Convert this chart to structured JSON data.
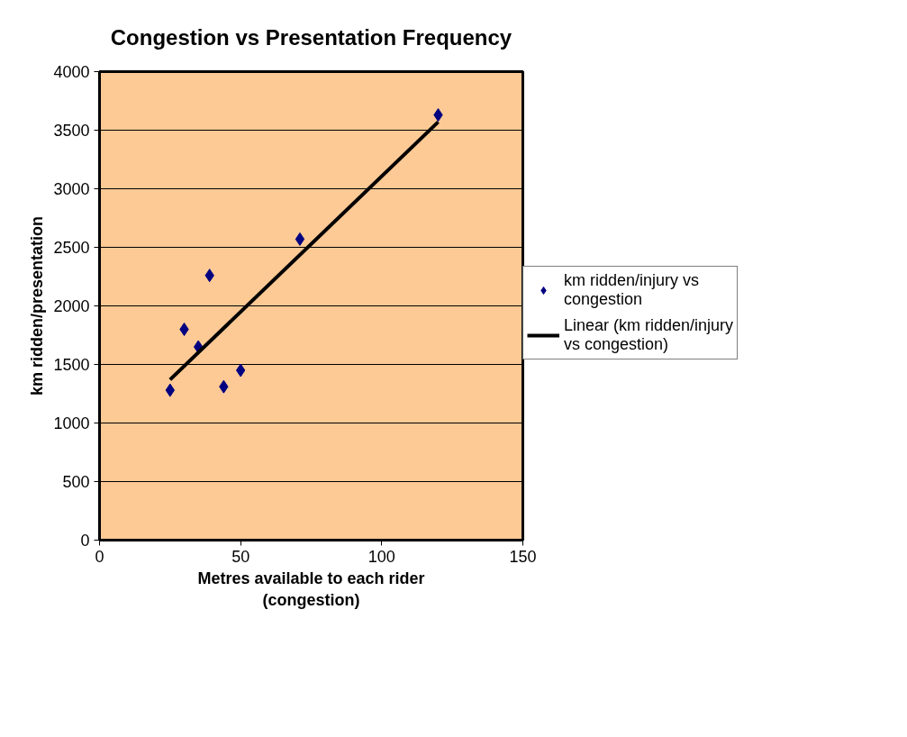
{
  "chart_data": {
    "type": "scatter",
    "title": "Congestion vs Presentation Frequency",
    "xlabel": "Metres available to each rider (congestion)",
    "ylabel": "km ridden/presentation",
    "xlim": [
      0,
      150
    ],
    "xticks": [
      0,
      50,
      100,
      150
    ],
    "ylim": [
      0,
      4000
    ],
    "yticks": [
      0,
      500,
      1000,
      1500,
      2000,
      2500,
      3000,
      3500,
      4000
    ],
    "grid": "y",
    "legend": "right",
    "series": [
      {
        "name": "km ridden/injury vs congestion",
        "color": "#000080",
        "marker": "diamond",
        "x": [
          25,
          30,
          35,
          39,
          44,
          50,
          71,
          120
        ],
        "values": [
          1280,
          1800,
          1650,
          2260,
          1310,
          1450,
          2570,
          3630
        ]
      },
      {
        "name": "Linear (km ridden/injury vs congestion)",
        "type": "line",
        "color": "#000000",
        "line_style": "solid",
        "marker": "none",
        "x": [
          25,
          120
        ],
        "values": [
          1370,
          3570
        ]
      }
    ]
  }
}
